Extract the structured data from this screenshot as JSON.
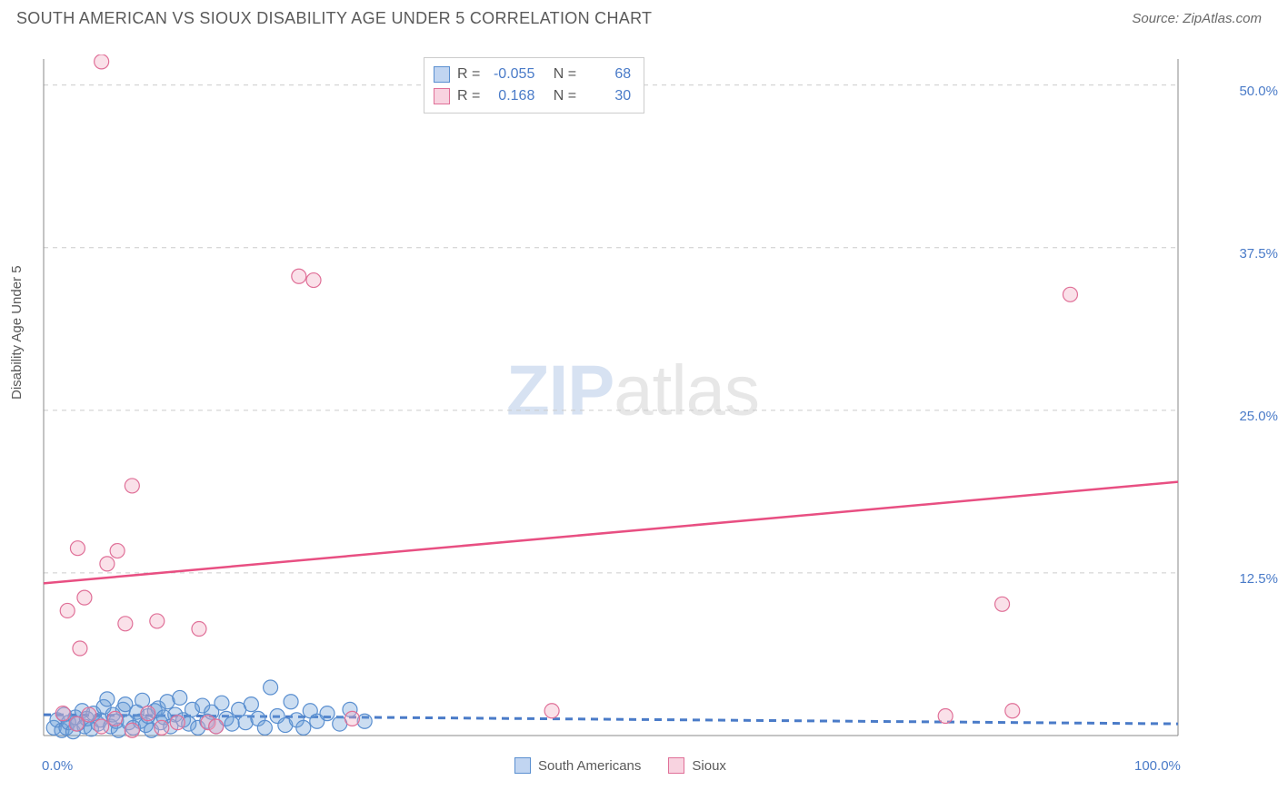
{
  "header": {
    "title": "SOUTH AMERICAN VS SIOUX DISABILITY AGE UNDER 5 CORRELATION CHART",
    "source_label": "Source:",
    "source_value": "ZipAtlas.com"
  },
  "chart": {
    "type": "scatter",
    "y_axis_label": "Disability Age Under 5",
    "xlim": [
      0,
      100
    ],
    "ylim": [
      0,
      52
    ],
    "x_ticks": [
      {
        "val": 0,
        "label": "0.0%"
      },
      {
        "val": 100,
        "label": "100.0%"
      }
    ],
    "y_ticks": [
      {
        "val": 12.5,
        "label": "12.5%"
      },
      {
        "val": 25.0,
        "label": "25.0%"
      },
      {
        "val": 37.5,
        "label": "37.5%"
      },
      {
        "val": 50.0,
        "label": "50.0%"
      }
    ],
    "background_color": "#ffffff",
    "grid_color": "#cccccc",
    "axis_color": "#888888",
    "marker_radius": 8,
    "series": [
      {
        "name": "South Americans",
        "color_fill": "#6a9fd8",
        "color_stroke": "#5a8fd0",
        "css": "blue",
        "stats": {
          "R_label": "R =",
          "R": "-0.055",
          "N_label": "N =",
          "N": "68"
        },
        "trend": {
          "x1": 0,
          "y1": 1.6,
          "x2": 100,
          "y2": 0.9,
          "css": "trend-blue"
        },
        "points": [
          [
            0.9,
            0.6
          ],
          [
            1.2,
            1.2
          ],
          [
            1.6,
            0.4
          ],
          [
            1.8,
            1.6
          ],
          [
            2.0,
            0.6
          ],
          [
            2.2,
            1.0
          ],
          [
            2.6,
            0.3
          ],
          [
            2.8,
            1.4
          ],
          [
            3.0,
            0.9
          ],
          [
            3.4,
            1.9
          ],
          [
            3.6,
            0.7
          ],
          [
            3.8,
            1.3
          ],
          [
            4.2,
            0.5
          ],
          [
            4.4,
            1.7
          ],
          [
            4.8,
            0.9
          ],
          [
            5.0,
            1.2
          ],
          [
            5.3,
            2.2
          ],
          [
            5.6,
            2.8
          ],
          [
            5.9,
            0.7
          ],
          [
            6.1,
            1.6
          ],
          [
            6.4,
            1.1
          ],
          [
            6.6,
            0.4
          ],
          [
            7.0,
            2.0
          ],
          [
            7.2,
            2.4
          ],
          [
            7.5,
            1.0
          ],
          [
            7.9,
            0.6
          ],
          [
            8.2,
            1.8
          ],
          [
            8.5,
            1.1
          ],
          [
            8.7,
            2.7
          ],
          [
            9.0,
            0.8
          ],
          [
            9.2,
            1.5
          ],
          [
            9.5,
            0.4
          ],
          [
            9.8,
            1.9
          ],
          [
            10.1,
            2.1
          ],
          [
            10.3,
            1.0
          ],
          [
            10.6,
            1.4
          ],
          [
            10.9,
            2.6
          ],
          [
            11.2,
            0.7
          ],
          [
            11.6,
            1.6
          ],
          [
            12.0,
            2.9
          ],
          [
            12.3,
            1.2
          ],
          [
            12.8,
            0.9
          ],
          [
            13.1,
            2.0
          ],
          [
            13.6,
            0.6
          ],
          [
            14.0,
            2.3
          ],
          [
            14.4,
            1.1
          ],
          [
            14.8,
            1.8
          ],
          [
            15.2,
            0.7
          ],
          [
            15.7,
            2.5
          ],
          [
            16.1,
            1.3
          ],
          [
            16.6,
            0.9
          ],
          [
            17.2,
            2.0
          ],
          [
            17.8,
            1.0
          ],
          [
            18.3,
            2.4
          ],
          [
            18.9,
            1.3
          ],
          [
            19.5,
            0.6
          ],
          [
            20.0,
            3.7
          ],
          [
            20.6,
            1.5
          ],
          [
            21.3,
            0.8
          ],
          [
            21.8,
            2.6
          ],
          [
            22.3,
            1.2
          ],
          [
            22.9,
            0.6
          ],
          [
            23.5,
            1.9
          ],
          [
            24.1,
            1.1
          ],
          [
            25.0,
            1.7
          ],
          [
            26.1,
            0.9
          ],
          [
            27.0,
            2.0
          ],
          [
            28.3,
            1.1
          ]
        ]
      },
      {
        "name": "Sioux",
        "color_fill": "#f0a8c0",
        "color_stroke": "#e07098",
        "css": "pink",
        "stats": {
          "R_label": "R =",
          "R": "0.168",
          "N_label": "N =",
          "N": "30"
        },
        "trend": {
          "x1": 0,
          "y1": 11.7,
          "x2": 100,
          "y2": 19.5,
          "css": "trend-pink"
        },
        "points": [
          [
            5.1,
            51.8
          ],
          [
            22.5,
            35.3
          ],
          [
            23.8,
            35.0
          ],
          [
            90.5,
            33.9
          ],
          [
            7.8,
            19.2
          ],
          [
            3.0,
            14.4
          ],
          [
            6.5,
            14.2
          ],
          [
            5.6,
            13.2
          ],
          [
            3.6,
            10.6
          ],
          [
            2.1,
            9.6
          ],
          [
            84.5,
            10.1
          ],
          [
            10.0,
            8.8
          ],
          [
            7.2,
            8.6
          ],
          [
            13.7,
            8.2
          ],
          [
            3.2,
            6.7
          ],
          [
            1.7,
            1.7
          ],
          [
            2.9,
            0.9
          ],
          [
            4.0,
            1.6
          ],
          [
            5.1,
            0.7
          ],
          [
            6.3,
            1.3
          ],
          [
            7.8,
            0.4
          ],
          [
            9.2,
            1.7
          ],
          [
            10.4,
            0.6
          ],
          [
            11.8,
            1.0
          ],
          [
            14.5,
            1.0
          ],
          [
            15.2,
            0.7
          ],
          [
            44.8,
            1.9
          ],
          [
            79.5,
            1.5
          ],
          [
            85.4,
            1.9
          ],
          [
            27.2,
            1.3
          ]
        ]
      }
    ],
    "watermark": {
      "zip": "ZIP",
      "atlas": "atlas"
    },
    "bottom_legend": [
      {
        "css": "blue",
        "label": "South Americans"
      },
      {
        "css": "pink",
        "label": "Sioux"
      }
    ]
  }
}
